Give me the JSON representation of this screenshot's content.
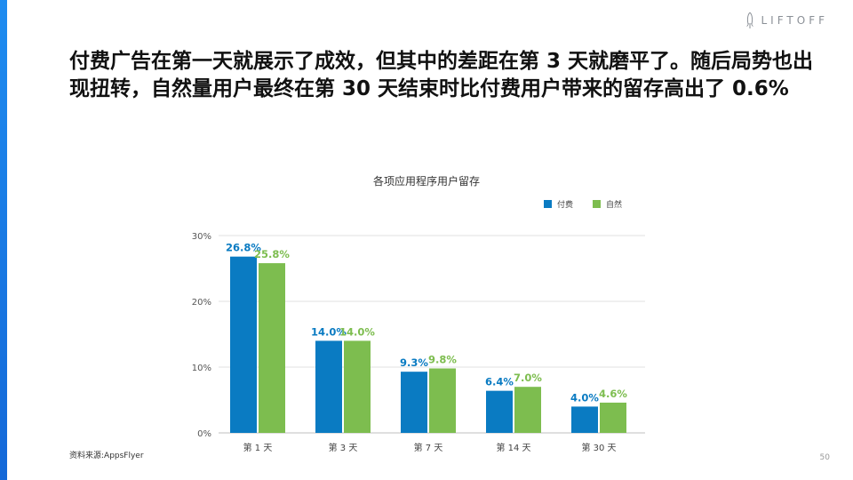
{
  "logo": {
    "text": "LIFTOFF",
    "icon": "rocket-icon"
  },
  "headline": "付费广告在第一天就展示了成效，但其中的差距在第 3 天就磨平了。随后局势也出现扭转，自然量用户最终在第 30 天结束时比付费用户带来的留存高出了 0.6%",
  "source": "资料来源:AppsFlyer",
  "page_number": "50",
  "colors": {
    "paid": "#0a7bc2",
    "organic": "#7dbd4f",
    "accent": "#1e8cf0"
  },
  "chart_data": {
    "type": "bar",
    "title": "各项应用程序用户留存",
    "categories": [
      "第 1 天",
      "第 3 天",
      "第 7 天",
      "第 14 天",
      "第 30 天"
    ],
    "series": [
      {
        "name": "付费",
        "values": [
          26.8,
          14.0,
          9.3,
          6.4,
          4.0
        ],
        "labels": [
          "26.8%",
          "14.0%",
          "9.3%",
          "6.4%",
          "4.0%"
        ]
      },
      {
        "name": "自然",
        "values": [
          25.8,
          14.0,
          9.8,
          7.0,
          4.6
        ],
        "labels": [
          "25.8%",
          "14.0%",
          "9.8%",
          "7.0%",
          "4.6%"
        ]
      }
    ],
    "ylim": [
      0,
      30
    ],
    "yticks": [
      "0%",
      "10%",
      "20%",
      "30%"
    ],
    "grid": true,
    "legend": "top-right"
  }
}
